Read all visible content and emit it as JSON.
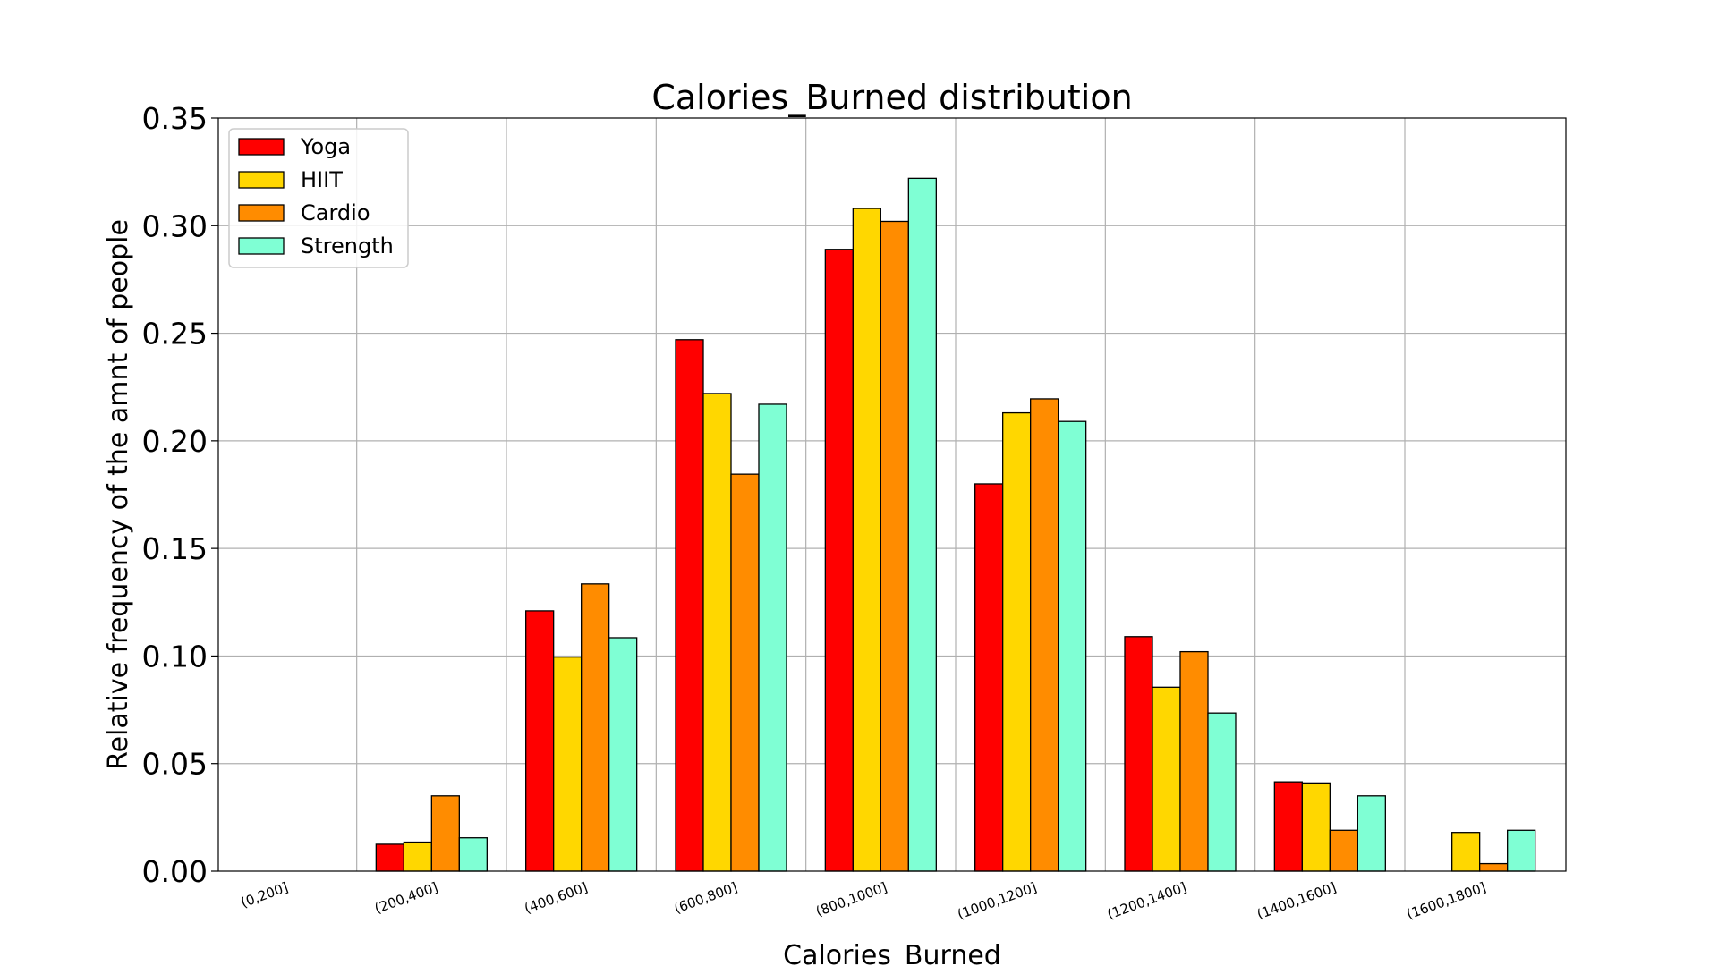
{
  "chart_data": {
    "type": "bar",
    "title": "Calories_Burned distribution",
    "xlabel": "Calories_Burned",
    "ylabel": "Relative frequency of the amnt of people",
    "ylim": [
      0,
      0.35
    ],
    "yticks": [
      "0.00",
      "0.05",
      "0.10",
      "0.15",
      "0.20",
      "0.25",
      "0.30",
      "0.35"
    ],
    "grid": true,
    "legend_position": "top-left",
    "categories": [
      "(0,200]",
      "(200,400]",
      "(400,600]",
      "(600,800]",
      "(800,1000]",
      "(1000,1200]",
      "(1200,1400]",
      "(1400,1600]",
      "(1600,1800]"
    ],
    "series": [
      {
        "name": "Yoga",
        "color": "#ff0000",
        "values": [
          0.0,
          0.0125,
          0.121,
          0.247,
          0.289,
          0.18,
          0.109,
          0.0415,
          0.0
        ]
      },
      {
        "name": "HIIT",
        "color": "#ffd700",
        "values": [
          0.0,
          0.0135,
          0.0995,
          0.222,
          0.308,
          0.213,
          0.0855,
          0.041,
          0.018
        ]
      },
      {
        "name": "Cardio",
        "color": "#ff8c00",
        "values": [
          0.0,
          0.035,
          0.1335,
          0.1845,
          0.302,
          0.2195,
          0.102,
          0.019,
          0.0035
        ]
      },
      {
        "name": "Strength",
        "color": "#7fffd4",
        "values": [
          0.0,
          0.0155,
          0.1085,
          0.217,
          0.322,
          0.209,
          0.0735,
          0.035,
          0.019
        ]
      }
    ]
  }
}
